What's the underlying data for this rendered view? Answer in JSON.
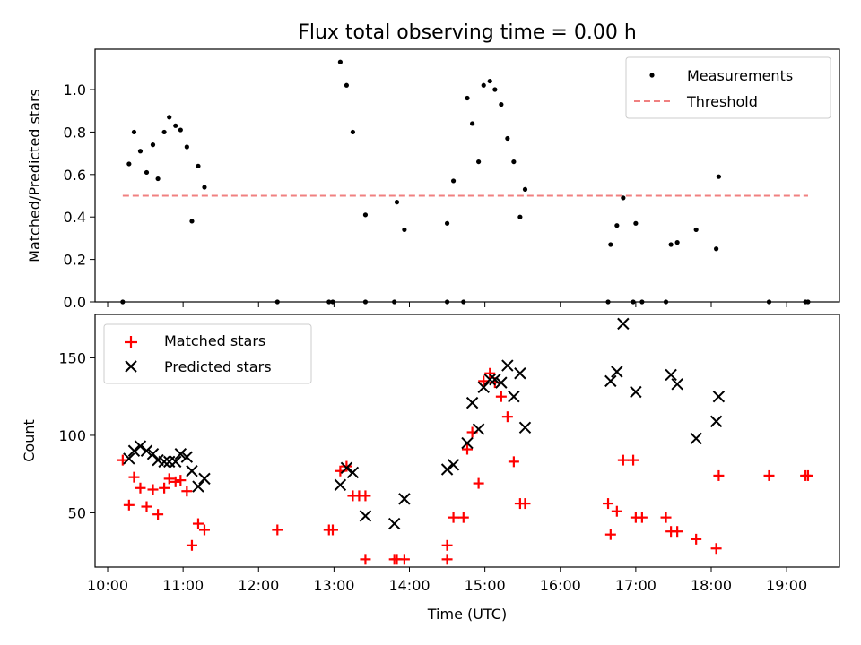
{
  "title": "Flux total observing time = 0.00 h",
  "colors": {
    "measurement": "#000000",
    "threshold": "#f08080",
    "matched": "#ff0000",
    "predicted": "#000000"
  },
  "x_ticks": [
    "10:00",
    "11:00",
    "12:00",
    "13:00",
    "14:00",
    "15:00",
    "16:00",
    "17:00",
    "18:00",
    "19:00"
  ],
  "chart_data": [
    {
      "type": "scatter",
      "ylabel": "Matched/Predicted stars",
      "xlim": [
        "09:50",
        "19:42"
      ],
      "ylim": [
        0,
        1.19
      ],
      "yticks": [
        0.0,
        0.2,
        0.4,
        0.6,
        0.8,
        1.0
      ],
      "ytick_labels": [
        "0.0",
        "0.2",
        "0.4",
        "0.6",
        "0.8",
        "1.0"
      ],
      "legend": "top-right",
      "series": [
        {
          "name": "Measurements",
          "style": "dot",
          "points": [
            [
              "10:12",
              0.0
            ],
            [
              "10:17",
              0.65
            ],
            [
              "10:21",
              0.8
            ],
            [
              "10:26",
              0.71
            ],
            [
              "10:31",
              0.61
            ],
            [
              "10:36",
              0.74
            ],
            [
              "10:40",
              0.58
            ],
            [
              "10:45",
              0.8
            ],
            [
              "10:49",
              0.87
            ],
            [
              "10:54",
              0.83
            ],
            [
              "10:58",
              0.81
            ],
            [
              "11:03",
              0.73
            ],
            [
              "11:07",
              0.38
            ],
            [
              "11:12",
              0.64
            ],
            [
              "11:17",
              0.54
            ],
            [
              "12:15",
              0.0
            ],
            [
              "12:56",
              0.0
            ],
            [
              "12:59",
              0.0
            ],
            [
              "13:05",
              1.13
            ],
            [
              "13:10",
              1.02
            ],
            [
              "13:15",
              0.8
            ],
            [
              "13:25",
              0.41
            ],
            [
              "13:25",
              0.0
            ],
            [
              "13:48",
              0.0
            ],
            [
              "13:50",
              0.47
            ],
            [
              "13:56",
              0.34
            ],
            [
              "14:30",
              0.0
            ],
            [
              "14:30",
              0.37
            ],
            [
              "14:35",
              0.57
            ],
            [
              "14:43",
              0.0
            ],
            [
              "14:46",
              0.96
            ],
            [
              "14:50",
              0.84
            ],
            [
              "14:55",
              0.66
            ],
            [
              "14:59",
              1.02
            ],
            [
              "15:04",
              1.04
            ],
            [
              "15:08",
              1.0
            ],
            [
              "15:13",
              0.93
            ],
            [
              "15:18",
              0.77
            ],
            [
              "15:23",
              0.66
            ],
            [
              "15:28",
              0.4
            ],
            [
              "15:32",
              0.53
            ],
            [
              "16:38",
              0.0
            ],
            [
              "16:40",
              0.27
            ],
            [
              "16:45",
              0.36
            ],
            [
              "16:50",
              0.49
            ],
            [
              "16:58",
              0.0
            ],
            [
              "17:00",
              0.37
            ],
            [
              "17:05",
              0.0
            ],
            [
              "17:24",
              0.0
            ],
            [
              "17:28",
              0.27
            ],
            [
              "17:33",
              0.28
            ],
            [
              "17:48",
              0.34
            ],
            [
              "18:04",
              0.25
            ],
            [
              "18:06",
              0.59
            ],
            [
              "18:46",
              0.0
            ],
            [
              "19:15",
              0.0
            ],
            [
              "19:17",
              0.0
            ]
          ]
        },
        {
          "name": "Threshold",
          "style": "dashed-line",
          "points": [
            [
              "10:12",
              0.5
            ],
            [
              "19:17",
              0.5
            ]
          ]
        }
      ]
    },
    {
      "type": "scatter",
      "ylabel": "Count",
      "xlabel": "Time (UTC)",
      "xlim": [
        "09:50",
        "19:42"
      ],
      "ylim": [
        15,
        178
      ],
      "yticks": [
        50,
        100,
        150
      ],
      "ytick_labels": [
        "50",
        "100",
        "150"
      ],
      "legend": "top-left",
      "series": [
        {
          "name": "Matched stars",
          "marker": "plus",
          "points": [
            [
              "10:12",
              84
            ],
            [
              "10:17",
              55
            ],
            [
              "10:21",
              73
            ],
            [
              "10:26",
              66
            ],
            [
              "10:31",
              54
            ],
            [
              "10:36",
              65
            ],
            [
              "10:40",
              49
            ],
            [
              "10:45",
              66
            ],
            [
              "10:49",
              72
            ],
            [
              "10:54",
              70
            ],
            [
              "10:58",
              71
            ],
            [
              "11:03",
              64
            ],
            [
              "11:07",
              29
            ],
            [
              "11:12",
              43
            ],
            [
              "11:17",
              39
            ],
            [
              "12:15",
              39
            ],
            [
              "12:56",
              39
            ],
            [
              "12:59",
              39
            ],
            [
              "13:05",
              77
            ],
            [
              "13:10",
              80
            ],
            [
              "13:15",
              61
            ],
            [
              "13:20",
              61
            ],
            [
              "13:25",
              20
            ],
            [
              "13:25",
              61
            ],
            [
              "13:48",
              20
            ],
            [
              "13:50",
              20
            ],
            [
              "13:56",
              20
            ],
            [
              "14:30",
              29
            ],
            [
              "14:30",
              20
            ],
            [
              "14:35",
              47
            ],
            [
              "14:43",
              47
            ],
            [
              "14:46",
              91
            ],
            [
              "14:50",
              102
            ],
            [
              "14:55",
              69
            ],
            [
              "14:59",
              135
            ],
            [
              "15:04",
              140
            ],
            [
              "15:08",
              134
            ],
            [
              "15:13",
              125
            ],
            [
              "15:18",
              112
            ],
            [
              "15:23",
              83
            ],
            [
              "15:28",
              56
            ],
            [
              "15:32",
              56
            ],
            [
              "16:38",
              56
            ],
            [
              "16:40",
              36
            ],
            [
              "16:45",
              51
            ],
            [
              "16:50",
              84
            ],
            [
              "16:58",
              84
            ],
            [
              "17:00",
              47
            ],
            [
              "17:05",
              47
            ],
            [
              "17:24",
              47
            ],
            [
              "17:28",
              38
            ],
            [
              "17:33",
              38
            ],
            [
              "17:48",
              33
            ],
            [
              "18:04",
              27
            ],
            [
              "18:06",
              74
            ],
            [
              "18:46",
              74
            ],
            [
              "19:15",
              74
            ],
            [
              "19:17",
              74
            ]
          ]
        },
        {
          "name": "Predicted stars",
          "marker": "x",
          "points": [
            [
              "10:17",
              85
            ],
            [
              "10:21",
              90
            ],
            [
              "10:26",
              93
            ],
            [
              "10:31",
              90
            ],
            [
              "10:36",
              88
            ],
            [
              "10:40",
              84
            ],
            [
              "10:45",
              83
            ],
            [
              "10:49",
              83
            ],
            [
              "10:54",
              83
            ],
            [
              "10:58",
              88
            ],
            [
              "11:03",
              86
            ],
            [
              "11:07",
              77
            ],
            [
              "11:12",
              67
            ],
            [
              "11:17",
              72
            ],
            [
              "13:05",
              68
            ],
            [
              "13:10",
              79
            ],
            [
              "13:15",
              76
            ],
            [
              "13:25",
              48
            ],
            [
              "13:48",
              43
            ],
            [
              "13:56",
              59
            ],
            [
              "14:30",
              78
            ],
            [
              "14:35",
              81
            ],
            [
              "14:46",
              95
            ],
            [
              "14:50",
              121
            ],
            [
              "14:55",
              104
            ],
            [
              "14:59",
              131
            ],
            [
              "15:04",
              136
            ],
            [
              "15:08",
              136
            ],
            [
              "15:13",
              134
            ],
            [
              "15:18",
              145
            ],
            [
              "15:23",
              125
            ],
            [
              "15:28",
              140
            ],
            [
              "15:32",
              105
            ],
            [
              "16:40",
              135
            ],
            [
              "16:45",
              141
            ],
            [
              "16:50",
              172
            ],
            [
              "17:00",
              128
            ],
            [
              "17:28",
              139
            ],
            [
              "17:33",
              133
            ],
            [
              "17:48",
              98
            ],
            [
              "18:04",
              109
            ],
            [
              "18:06",
              125
            ]
          ]
        }
      ]
    }
  ]
}
